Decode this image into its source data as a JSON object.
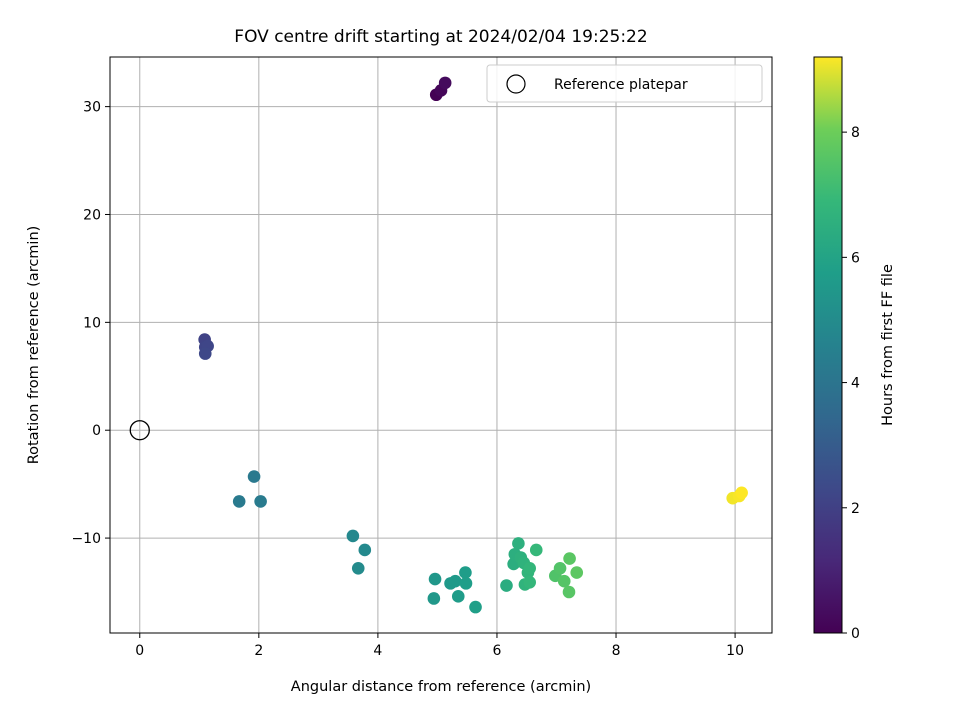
{
  "chart_data": {
    "type": "scatter",
    "title": "FOV centre drift starting at 2024/02/04 19:25:22",
    "xlabel": "Angular distance from reference (arcmin)",
    "ylabel": "Rotation from reference (arcmin)",
    "xlim": [
      -0.5,
      10.62
    ],
    "ylim": [
      -18.8,
      34.6
    ],
    "xticks": [
      0,
      2,
      4,
      6,
      8,
      10
    ],
    "yticks": [
      -10,
      0,
      10,
      20,
      30
    ],
    "grid": true,
    "legend": {
      "placement": "top-right",
      "entries": [
        "Reference platepar"
      ]
    },
    "reference_point": {
      "name": "Reference platepar",
      "x": 0,
      "y": 0
    },
    "colorbar": {
      "label": "Hours from first FF file",
      "colormap": "viridis",
      "min": 0,
      "max": 9.2,
      "ticks": [
        0,
        2,
        4,
        6,
        8
      ]
    },
    "points": [
      {
        "x": 4.98,
        "y": 31.1,
        "c": 0.0
      },
      {
        "x": 5.06,
        "y": 31.5,
        "c": 0.15
      },
      {
        "x": 5.13,
        "y": 32.2,
        "c": 0.3
      },
      {
        "x": 1.09,
        "y": 8.4,
        "c": 2.1
      },
      {
        "x": 1.1,
        "y": 7.7,
        "c": 2.15
      },
      {
        "x": 1.14,
        "y": 7.8,
        "c": 2.2
      },
      {
        "x": 1.1,
        "y": 7.1,
        "c": 2.25
      },
      {
        "x": 1.92,
        "y": -4.3,
        "c": 4.2
      },
      {
        "x": 1.67,
        "y": -6.6,
        "c": 4.25
      },
      {
        "x": 2.03,
        "y": -6.6,
        "c": 4.3
      },
      {
        "x": 3.58,
        "y": -9.8,
        "c": 4.85
      },
      {
        "x": 3.78,
        "y": -11.1,
        "c": 4.9
      },
      {
        "x": 3.67,
        "y": -12.8,
        "c": 4.95
      },
      {
        "x": 4.96,
        "y": -13.8,
        "c": 5.45
      },
      {
        "x": 4.94,
        "y": -15.6,
        "c": 5.5
      },
      {
        "x": 5.22,
        "y": -14.2,
        "c": 5.55
      },
      {
        "x": 5.3,
        "y": -14.0,
        "c": 5.6
      },
      {
        "x": 5.35,
        "y": -15.4,
        "c": 5.65
      },
      {
        "x": 5.47,
        "y": -13.2,
        "c": 5.7
      },
      {
        "x": 5.48,
        "y": -14.2,
        "c": 5.75
      },
      {
        "x": 5.64,
        "y": -16.4,
        "c": 5.8
      },
      {
        "x": 6.16,
        "y": -14.4,
        "c": 6.4
      },
      {
        "x": 6.28,
        "y": -12.4,
        "c": 6.45
      },
      {
        "x": 6.3,
        "y": -11.5,
        "c": 6.5
      },
      {
        "x": 6.36,
        "y": -10.5,
        "c": 6.55
      },
      {
        "x": 6.4,
        "y": -11.8,
        "c": 6.6
      },
      {
        "x": 6.45,
        "y": -12.3,
        "c": 6.65
      },
      {
        "x": 6.47,
        "y": -14.3,
        "c": 6.7
      },
      {
        "x": 6.52,
        "y": -13.2,
        "c": 6.75
      },
      {
        "x": 6.55,
        "y": -12.8,
        "c": 6.8
      },
      {
        "x": 6.55,
        "y": -14.1,
        "c": 6.85
      },
      {
        "x": 6.66,
        "y": -11.1,
        "c": 6.9
      },
      {
        "x": 6.98,
        "y": -13.5,
        "c": 7.45
      },
      {
        "x": 7.06,
        "y": -12.8,
        "c": 7.5
      },
      {
        "x": 7.13,
        "y": -14.0,
        "c": 7.55
      },
      {
        "x": 7.21,
        "y": -15.0,
        "c": 7.6
      },
      {
        "x": 7.22,
        "y": -11.9,
        "c": 7.65
      },
      {
        "x": 7.34,
        "y": -13.2,
        "c": 7.7
      },
      {
        "x": 9.96,
        "y": -6.3,
        "c": 9.1
      },
      {
        "x": 10.07,
        "y": -6.1,
        "c": 9.15
      },
      {
        "x": 10.11,
        "y": -5.8,
        "c": 9.2
      }
    ]
  }
}
